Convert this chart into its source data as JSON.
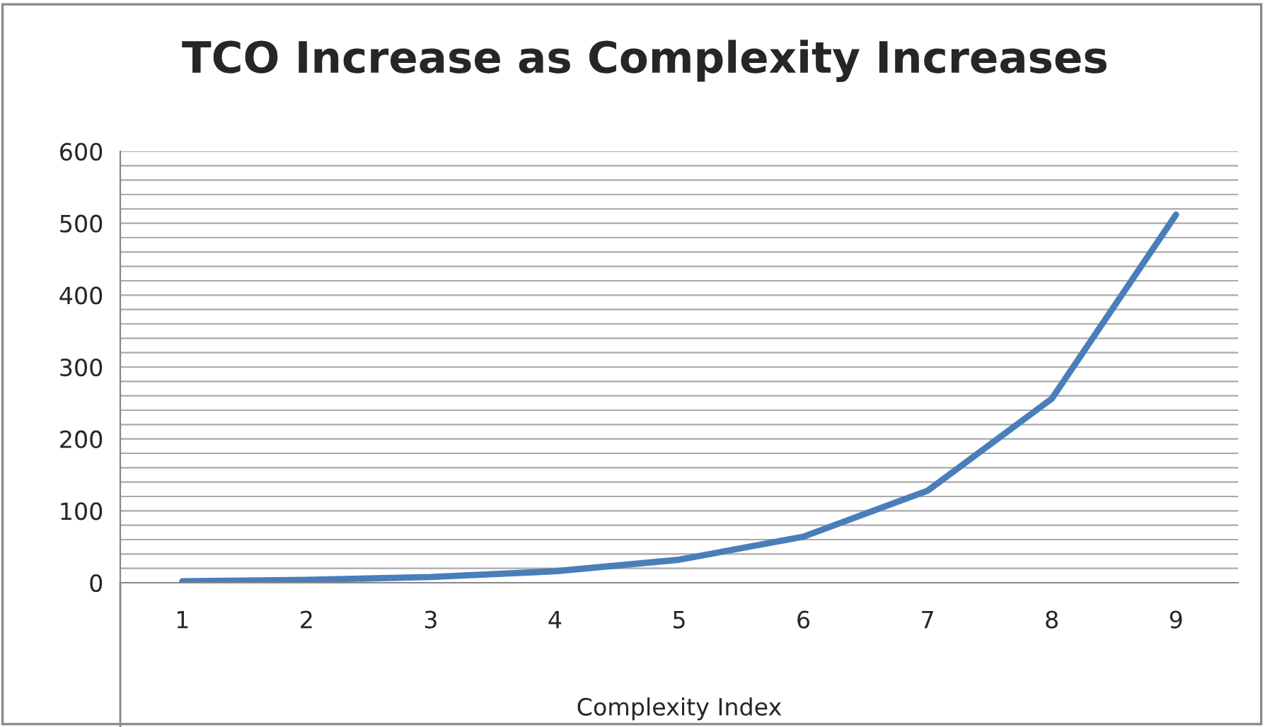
{
  "chart_data": {
    "type": "line",
    "title": "TCO Increase as Complexity Increases",
    "xlabel": "Complexity Index",
    "categories": [
      "1",
      "2",
      "3",
      "4",
      "5",
      "6",
      "7",
      "8",
      "9"
    ],
    "series": [
      {
        "color": "#4a7ebb",
        "values": [
          2,
          4,
          8,
          16,
          32,
          64,
          128,
          256,
          512
        ]
      }
    ],
    "ylim": [
      0,
      600
    ],
    "yticks": [
      0,
      {
        "value": 20,
        "label": null
      },
      {
        "value": 40,
        "label": null
      },
      {
        "value": 60,
        "label": null
      },
      {
        "value": 80,
        "label": null
      },
      100,
      {
        "value": 120,
        "label": null
      },
      {
        "value": 140,
        "label": null
      },
      {
        "value": 160,
        "label": null
      },
      {
        "value": 180,
        "label": null
      },
      200,
      {
        "value": 220,
        "label": null
      },
      {
        "value": 240,
        "label": null
      },
      {
        "value": 260,
        "label": null
      },
      {
        "value": 280,
        "label": null
      },
      300,
      {
        "value": 320,
        "label": null
      },
      {
        "value": 340,
        "label": null
      },
      {
        "value": 360,
        "label": null
      },
      {
        "value": 380,
        "label": null
      },
      400,
      {
        "value": 420,
        "label": null
      },
      {
        "value": 440,
        "label": null
      },
      {
        "value": 460,
        "label": null
      },
      {
        "value": 480,
        "label": null
      },
      500,
      {
        "value": 520,
        "label": null
      },
      {
        "value": 540,
        "label": null
      },
      {
        "value": 560,
        "label": null
      },
      {
        "value": 580,
        "label": null
      },
      600
    ],
    "grid": "y",
    "marker": "none",
    "line_style": "solid"
  }
}
